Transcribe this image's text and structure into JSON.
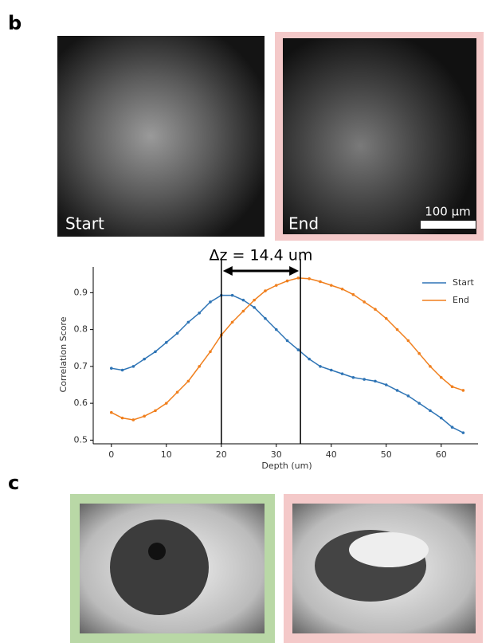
{
  "labels": {
    "b": "b",
    "c": "c"
  },
  "images": {
    "start_label": "Start",
    "end_label": "End",
    "scale_bar": "100 µm"
  },
  "chart_data": {
    "type": "line",
    "annotation": "Δz = 14.4 um",
    "markers": [
      20,
      34.4
    ],
    "x_label": "Depth (um)",
    "y_label": "Correlation Score",
    "x": [
      0,
      2,
      4,
      6,
      8,
      10,
      12,
      14,
      16,
      18,
      20,
      22,
      24,
      26,
      28,
      30,
      32,
      34,
      36,
      38,
      40,
      42,
      44,
      46,
      48,
      50,
      52,
      54,
      56,
      58,
      60,
      62,
      64
    ],
    "series": [
      {
        "name": "Start",
        "color": "#2e74b5",
        "values": [
          0.695,
          0.69,
          0.7,
          0.72,
          0.74,
          0.765,
          0.79,
          0.82,
          0.845,
          0.875,
          0.893,
          0.893,
          0.88,
          0.86,
          0.83,
          0.8,
          0.77,
          0.745,
          0.72,
          0.7,
          0.69,
          0.68,
          0.67,
          0.665,
          0.66,
          0.65,
          0.635,
          0.62,
          0.6,
          0.58,
          0.56,
          0.535,
          0.52
        ]
      },
      {
        "name": "End",
        "color": "#f07f1d",
        "values": [
          0.575,
          0.56,
          0.555,
          0.565,
          0.58,
          0.6,
          0.63,
          0.66,
          0.7,
          0.74,
          0.785,
          0.82,
          0.85,
          0.88,
          0.905,
          0.92,
          0.932,
          0.94,
          0.938,
          0.93,
          0.92,
          0.91,
          0.895,
          0.875,
          0.855,
          0.83,
          0.8,
          0.77,
          0.735,
          0.7,
          0.67,
          0.645,
          0.635
        ]
      }
    ],
    "xlim": [
      -3.3,
      66.7
    ],
    "ylim": [
      0.49,
      0.97
    ],
    "xticks": [
      0,
      10,
      20,
      30,
      40,
      50,
      60
    ],
    "yticks": [
      0.5,
      0.6,
      0.7,
      0.8,
      0.9
    ],
    "legend": "upper right"
  }
}
